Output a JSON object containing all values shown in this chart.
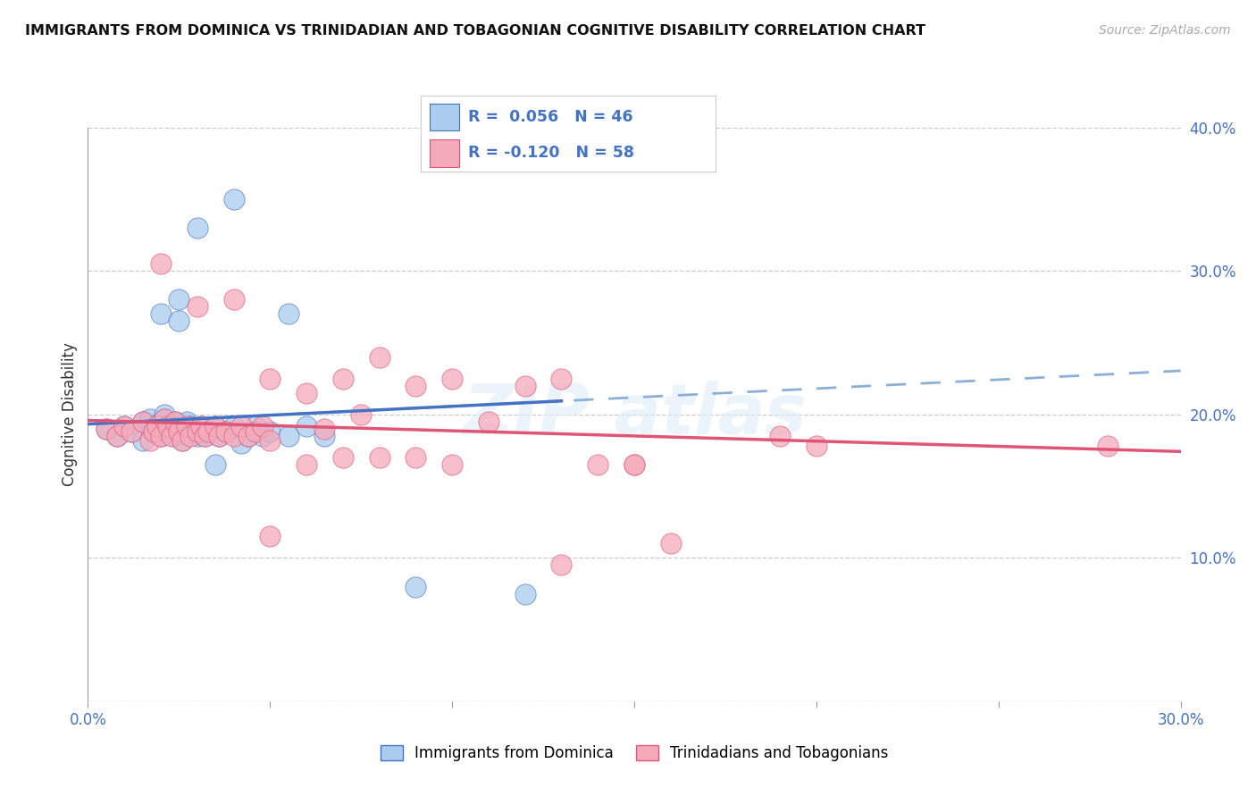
{
  "title": "IMMIGRANTS FROM DOMINICA VS TRINIDADIAN AND TOBAGONIAN COGNITIVE DISABILITY CORRELATION CHART",
  "source": "Source: ZipAtlas.com",
  "ylabel": "Cognitive Disability",
  "xmin": 0.0,
  "xmax": 0.3,
  "ymin": 0.0,
  "ymax": 0.4,
  "color_blue": "#aaccee",
  "color_pink": "#f5aabb",
  "line_blue": "#4472c4",
  "line_blue_dashed": "#8ab0d8",
  "line_pink": "#e05575",
  "R1": 0.056,
  "N1": 46,
  "R2": -0.12,
  "N2": 58,
  "legend_label_blue": "Immigrants from Dominica",
  "legend_label_pink": "Trinidadians and Tobagonians",
  "background_color": "#ffffff",
  "blue_x": [
    0.005,
    0.008,
    0.01,
    0.012,
    0.015,
    0.015,
    0.017,
    0.018,
    0.019,
    0.02,
    0.021,
    0.021,
    0.022,
    0.023,
    0.024,
    0.024,
    0.025,
    0.026,
    0.027,
    0.028,
    0.03,
    0.03,
    0.031,
    0.032,
    0.033,
    0.035,
    0.036,
    0.038,
    0.04,
    0.042,
    0.044,
    0.046,
    0.048,
    0.05,
    0.055,
    0.06,
    0.065,
    0.02,
    0.025,
    0.03,
    0.04,
    0.055,
    0.09,
    0.12,
    0.035,
    0.025
  ],
  "blue_y": [
    0.19,
    0.185,
    0.192,
    0.188,
    0.195,
    0.182,
    0.197,
    0.188,
    0.193,
    0.185,
    0.197,
    0.2,
    0.188,
    0.192,
    0.185,
    0.195,
    0.188,
    0.182,
    0.195,
    0.192,
    0.185,
    0.188,
    0.192,
    0.185,
    0.188,
    0.192,
    0.185,
    0.188,
    0.192,
    0.18,
    0.185,
    0.192,
    0.185,
    0.188,
    0.185,
    0.192,
    0.185,
    0.27,
    0.28,
    0.33,
    0.35,
    0.27,
    0.08,
    0.075,
    0.165,
    0.265
  ],
  "pink_x": [
    0.005,
    0.008,
    0.01,
    0.012,
    0.015,
    0.017,
    0.018,
    0.019,
    0.02,
    0.021,
    0.022,
    0.023,
    0.024,
    0.025,
    0.026,
    0.027,
    0.028,
    0.03,
    0.031,
    0.032,
    0.033,
    0.035,
    0.036,
    0.038,
    0.04,
    0.042,
    0.044,
    0.046,
    0.048,
    0.05,
    0.02,
    0.03,
    0.04,
    0.05,
    0.06,
    0.065,
    0.07,
    0.075,
    0.08,
    0.09,
    0.1,
    0.11,
    0.12,
    0.13,
    0.14,
    0.15,
    0.06,
    0.07,
    0.08,
    0.09,
    0.1,
    0.15,
    0.19,
    0.2,
    0.28,
    0.13,
    0.16,
    0.05
  ],
  "pink_y": [
    0.19,
    0.185,
    0.192,
    0.188,
    0.195,
    0.182,
    0.188,
    0.192,
    0.185,
    0.197,
    0.192,
    0.185,
    0.195,
    0.188,
    0.182,
    0.192,
    0.185,
    0.188,
    0.192,
    0.185,
    0.188,
    0.192,
    0.185,
    0.188,
    0.185,
    0.192,
    0.185,
    0.188,
    0.192,
    0.182,
    0.305,
    0.275,
    0.28,
    0.225,
    0.215,
    0.19,
    0.225,
    0.2,
    0.24,
    0.22,
    0.225,
    0.195,
    0.22,
    0.225,
    0.165,
    0.165,
    0.165,
    0.17,
    0.17,
    0.17,
    0.165,
    0.165,
    0.185,
    0.178,
    0.178,
    0.095,
    0.11,
    0.115
  ]
}
